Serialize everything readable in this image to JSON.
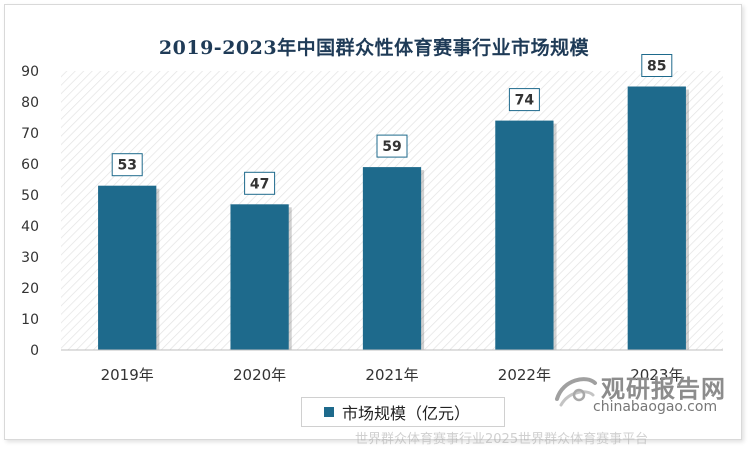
{
  "chart_data": {
    "type": "bar",
    "title": "2019-2023年中国群众性体育赛事行业市场规模",
    "categories": [
      "2019年",
      "2020年",
      "2021年",
      "2022年",
      "2023年"
    ],
    "series": [
      {
        "name": "市场规模（亿元）",
        "values": [
          53,
          47,
          59,
          74,
          85
        ]
      }
    ],
    "data_labels": [
      "53",
      "47",
      "59",
      "74",
      "85"
    ],
    "ylim": [
      0,
      90
    ],
    "yticks": [
      0,
      10,
      20,
      30,
      40,
      50,
      60,
      70,
      80,
      90
    ],
    "grid": false,
    "legend_position": "bottom",
    "bar_color": "#1e6a8c",
    "background": "diagonal hatch"
  },
  "branding": {
    "logo_text": "观研报告网",
    "logo_url": "chinabaogao.com",
    "watermark": "世界群众体育赛事行业2025世界群众体育赛事平台"
  }
}
